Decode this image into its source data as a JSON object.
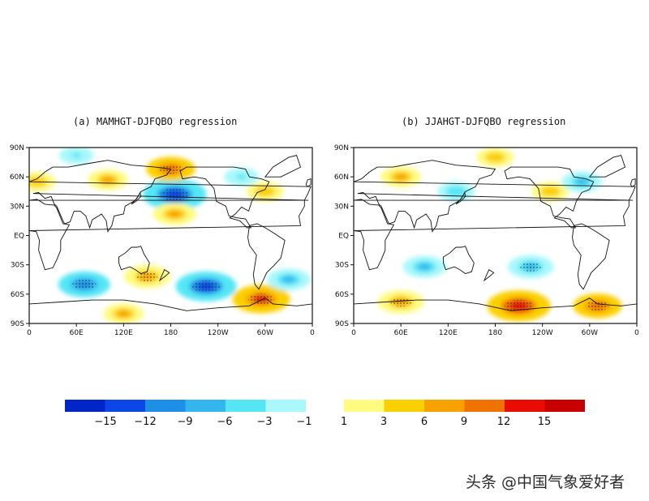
{
  "chart_data": {
    "type": "heatmap",
    "panels": [
      {
        "id": "a",
        "title": "(a) MAMHGT-DJFQBO regression",
        "x_ticks": [
          "0",
          "60E",
          "120E",
          "180",
          "120W",
          "60W",
          "0"
        ],
        "y_ticks": [
          "90N",
          "60N",
          "30N",
          "EQ",
          "30S",
          "60S",
          "90S"
        ],
        "features": [
          {
            "name": "arctic-negative",
            "lon": 60,
            "lat": 82,
            "value": -4
          },
          {
            "name": "north-atlantic-positive",
            "lon": 10,
            "lat": 55,
            "value": 5
          },
          {
            "name": "siberia-positive",
            "lon": 100,
            "lat": 57,
            "value": 6
          },
          {
            "name": "north-pacific-low",
            "lon": 185,
            "lat": 42,
            "value": -14
          },
          {
            "name": "bering-positive",
            "lon": 180,
            "lat": 68,
            "value": 9
          },
          {
            "name": "pacific-subtropical-positive",
            "lon": 185,
            "lat": 22,
            "value": 7
          },
          {
            "name": "north-america-positive",
            "lon": 300,
            "lat": 45,
            "value": 5
          },
          {
            "name": "canada-negative",
            "lon": 270,
            "lat": 60,
            "value": -4
          },
          {
            "name": "south-indian-negative",
            "lon": 70,
            "lat": -50,
            "value": -10
          },
          {
            "name": "australia-positive",
            "lon": 150,
            "lat": -42,
            "value": 8
          },
          {
            "name": "south-pacific-negative",
            "lon": 225,
            "lat": -52,
            "value": -13
          },
          {
            "name": "drake-positive",
            "lon": 295,
            "lat": -65,
            "value": 12
          },
          {
            "name": "south-atlantic-negative",
            "lon": 330,
            "lat": -45,
            "value": -7
          },
          {
            "name": "antarctic-positive",
            "lon": 120,
            "lat": -80,
            "value": 6
          }
        ]
      },
      {
        "id": "b",
        "title": "(b) JJAHGT-DJFQBO regression",
        "x_ticks": [
          "0",
          "60E",
          "120E",
          "180",
          "120W",
          "60W",
          "0"
        ],
        "y_ticks": [
          "90N",
          "60N",
          "30N",
          "EQ",
          "30S",
          "60S",
          "90S"
        ],
        "features": [
          {
            "name": "arctic-positive",
            "lon": 180,
            "lat": 80,
            "value": 5
          },
          {
            "name": "eurasia-positive",
            "lon": 60,
            "lat": 60,
            "value": 6
          },
          {
            "name": "east-asia-negative",
            "lon": 130,
            "lat": 45,
            "value": -5
          },
          {
            "name": "north-pacific-positive",
            "lon": 250,
            "lat": 45,
            "value": 5
          },
          {
            "name": "canada-negative",
            "lon": 290,
            "lat": 55,
            "value": -6
          },
          {
            "name": "south-indian-negative",
            "lon": 90,
            "lat": -32,
            "value": -7
          },
          {
            "name": "south-pacific-negative",
            "lon": 225,
            "lat": -32,
            "value": -8
          },
          {
            "name": "southern-ocean-positive",
            "lon": 60,
            "lat": -68,
            "value": 8
          },
          {
            "name": "amundsen-positive",
            "lon": 210,
            "lat": -72,
            "value": 14
          },
          {
            "name": "weddell-positive",
            "lon": 310,
            "lat": -72,
            "value": 9
          }
        ]
      }
    ],
    "colorbar": {
      "tick_labels": [
        "−15",
        "−12",
        "−9",
        "−6",
        "−3",
        "−1",
        "1",
        "3",
        "6",
        "9",
        "12",
        "15"
      ],
      "negative_colors": [
        "#0026c8",
        "#0a47e6",
        "#1e8ee6",
        "#35b5ee",
        "#55e6f5",
        "#a9f8fb"
      ],
      "positive_colors": [
        "#fffb80",
        "#fbd000",
        "#f7a200",
        "#f07200",
        "#e80d00",
        "#c90000"
      ]
    }
  },
  "watermark": "头条 @中国气象爱好者"
}
